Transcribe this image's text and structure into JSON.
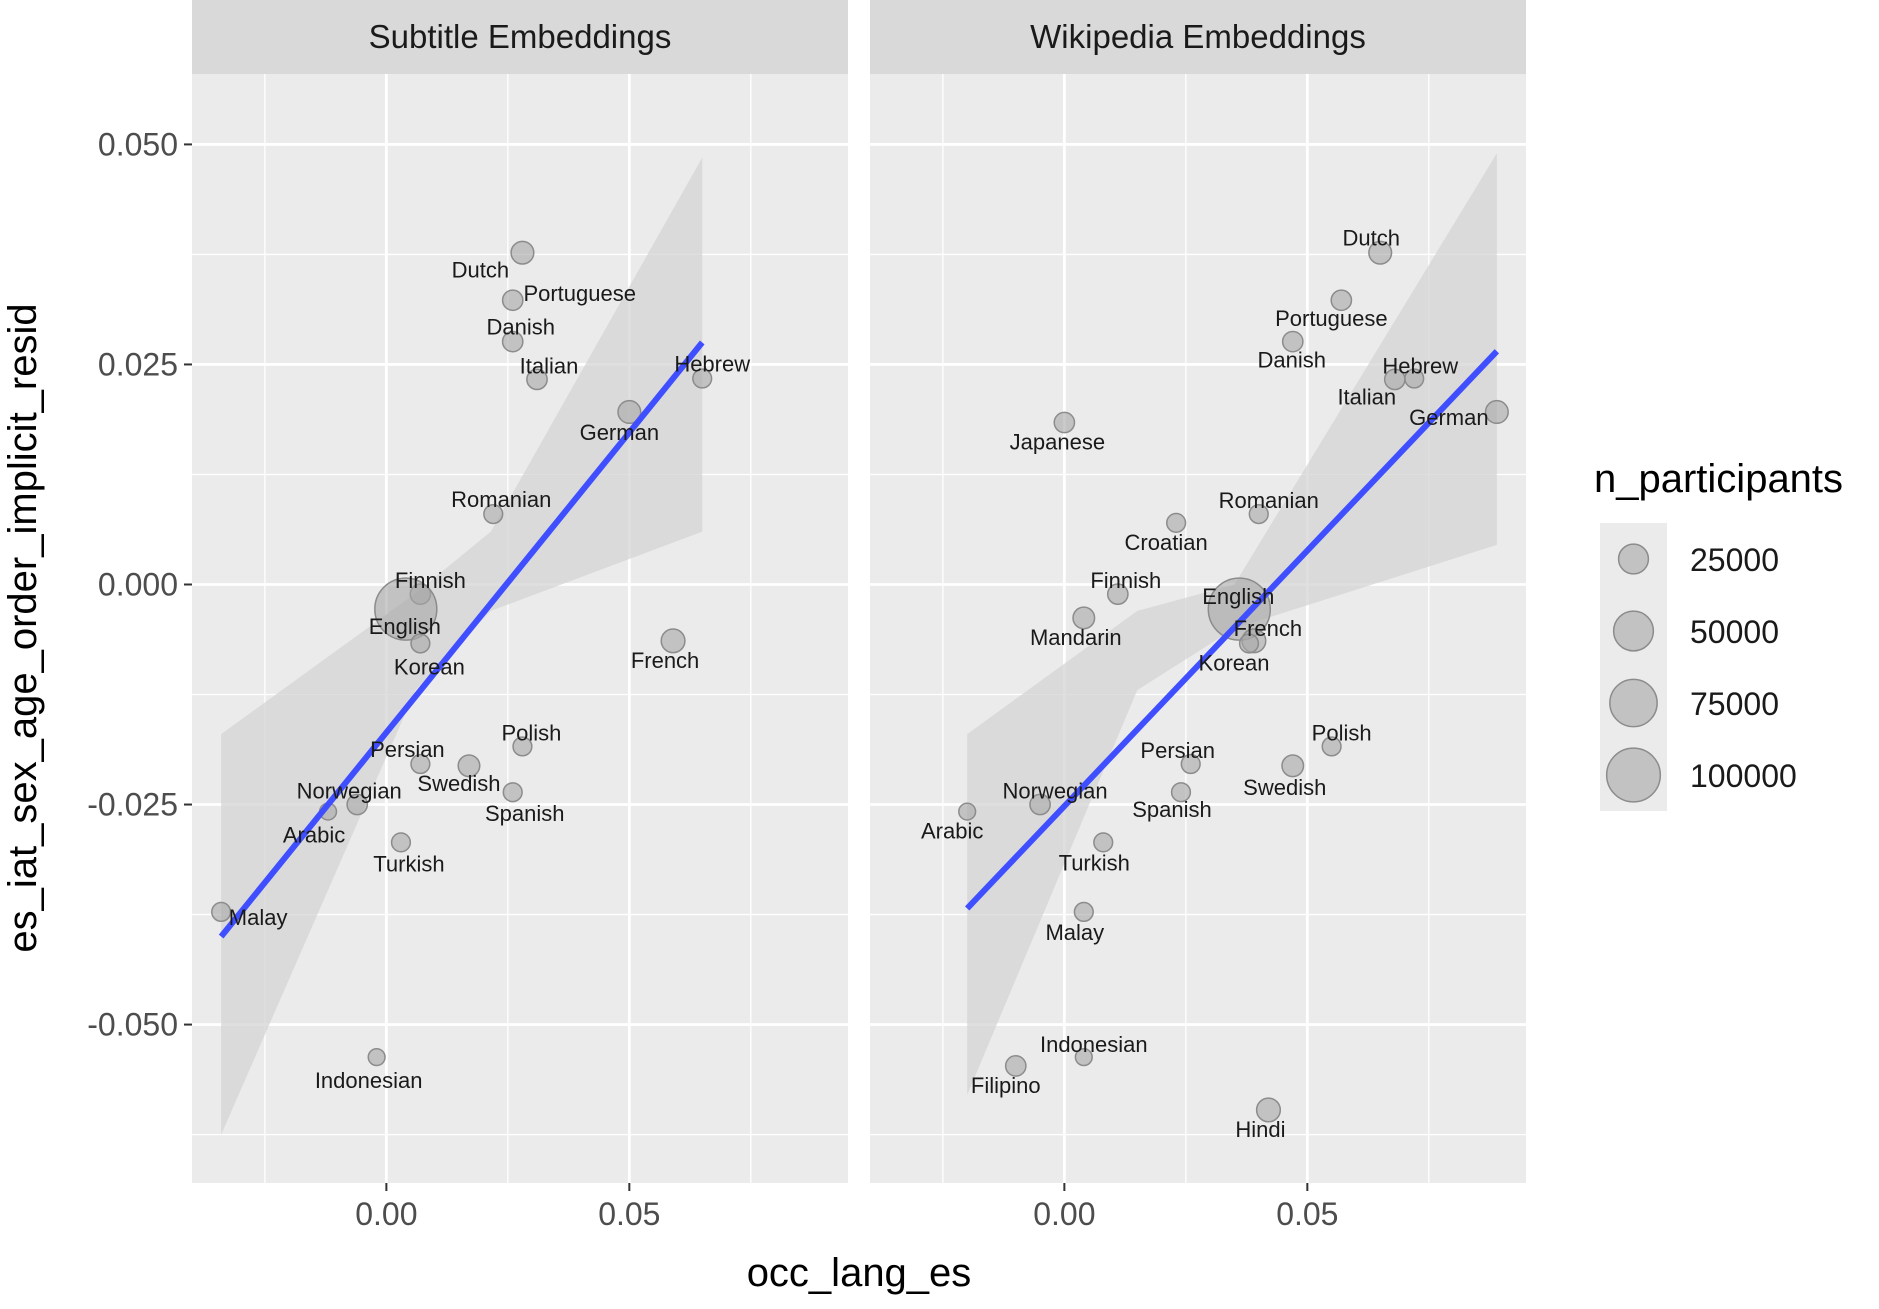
{
  "chart_data": {
    "type": "scatter",
    "x_label": "occ_lang_es",
    "y_label": "es_iat_sex_age_order_implicit_resid",
    "x_range": [
      -0.04,
      0.095
    ],
    "y_range": [
      -0.068,
      0.058
    ],
    "x_ticks": [
      0.0,
      0.05
    ],
    "x_tick_labels": [
      "0.00",
      "0.05"
    ],
    "y_ticks": [
      0.05,
      0.025,
      0.0,
      -0.025,
      -0.05
    ],
    "y_tick_labels": [
      "0.050",
      "0.025",
      "0.000",
      "-0.025",
      "-0.050"
    ],
    "grid": true,
    "legend": {
      "title": "n_participants",
      "placement": "right",
      "entries": [
        {
          "label": "25000",
          "value": 25000
        },
        {
          "label": "50000",
          "value": 50000
        },
        {
          "label": "75000",
          "value": 75000
        },
        {
          "label": "100000",
          "value": 100000
        }
      ]
    },
    "colors": {
      "panel_bg": "#ebebeb",
      "strip_bg": "#d9d9d9",
      "grid": "#ffffff",
      "point_fill": "#a6a6a6",
      "point_stroke": "#8c8c8c",
      "regression_line": "#3f4fff",
      "ribbon": "#d4d4d4"
    },
    "panels": [
      {
        "title": "Subtitle Embeddings",
        "fit_line": {
          "x": [
            -0.034,
            0.065
          ],
          "y": [
            -0.04,
            0.0275
          ]
        },
        "ribbon_upper": [
          [
            -0.034,
            -0.017
          ],
          [
            0.006,
            -0.001
          ],
          [
            0.0215,
            0.006
          ],
          [
            0.065,
            0.0485
          ]
        ],
        "ribbon_lower": [
          [
            -0.034,
            -0.0625
          ],
          [
            0.006,
            -0.012
          ],
          [
            0.0215,
            -0.003
          ],
          [
            0.065,
            0.006
          ]
        ],
        "points": [
          {
            "label": "Dutch",
            "x": 0.028,
            "y": 0.0377,
            "n": 5000
          },
          {
            "label": "Portuguese",
            "x": 0.026,
            "y": 0.0323,
            "n": 3000
          },
          {
            "label": "Danish",
            "x": 0.026,
            "y": 0.0276,
            "n": 3000
          },
          {
            "label": "Italian",
            "x": 0.031,
            "y": 0.0233,
            "n": 3000
          },
          {
            "label": "Hebrew",
            "x": 0.065,
            "y": 0.0234,
            "n": 2000
          },
          {
            "label": "German",
            "x": 0.05,
            "y": 0.0196,
            "n": 5000
          },
          {
            "label": "Romanian",
            "x": 0.022,
            "y": 0.008,
            "n": 2000
          },
          {
            "label": "Finnish",
            "x": 0.007,
            "y": -0.0011,
            "n": 3000
          },
          {
            "label": "English",
            "x": 0.004,
            "y": -0.0028,
            "n": 110000
          },
          {
            "label": "Korean",
            "x": 0.007,
            "y": -0.0067,
            "n": 2000
          },
          {
            "label": "French",
            "x": 0.059,
            "y": -0.0064,
            "n": 6000
          },
          {
            "label": "Polish",
            "x": 0.028,
            "y": -0.0184,
            "n": 2000
          },
          {
            "label": "Persian",
            "x": 0.007,
            "y": -0.0204,
            "n": 2000
          },
          {
            "label": "Swedish",
            "x": 0.017,
            "y": -0.0206,
            "n": 4000
          },
          {
            "label": "Spanish",
            "x": 0.026,
            "y": -0.0236,
            "n": 2000
          },
          {
            "label": "Norwegian",
            "x": -0.006,
            "y": -0.025,
            "n": 3000
          },
          {
            "label": "Arabic",
            "x": -0.012,
            "y": -0.0258,
            "n": 1000
          },
          {
            "label": "Turkish",
            "x": 0.003,
            "y": -0.0293,
            "n": 2000
          },
          {
            "label": "Malay",
            "x": -0.034,
            "y": -0.0372,
            "n": 2000
          },
          {
            "label": "Indonesian",
            "x": -0.002,
            "y": -0.0537,
            "n": 1000
          }
        ]
      },
      {
        "title": "Wikipedia Embeddings",
        "fit_line": {
          "x": [
            -0.02,
            0.089
          ],
          "y": [
            -0.0368,
            0.0265
          ]
        },
        "ribbon_upper": [
          [
            -0.02,
            -0.017
          ],
          [
            0.015,
            -0.003
          ],
          [
            0.035,
            0.0
          ],
          [
            0.089,
            0.049
          ]
        ],
        "ribbon_lower": [
          [
            -0.02,
            -0.058
          ],
          [
            0.015,
            -0.012
          ],
          [
            0.035,
            -0.005
          ],
          [
            0.089,
            0.0045
          ]
        ],
        "points": [
          {
            "label": "Dutch",
            "x": 0.065,
            "y": 0.0377,
            "n": 5000
          },
          {
            "label": "Portuguese",
            "x": 0.057,
            "y": 0.0323,
            "n": 3000
          },
          {
            "label": "Danish",
            "x": 0.047,
            "y": 0.0276,
            "n": 3000
          },
          {
            "label": "Hebrew",
            "x": 0.072,
            "y": 0.0234,
            "n": 2000
          },
          {
            "label": "Italian",
            "x": 0.068,
            "y": 0.0233,
            "n": 3000
          },
          {
            "label": "German",
            "x": 0.089,
            "y": 0.0196,
            "n": 5000
          },
          {
            "label": "Japanese",
            "x": 0.0,
            "y": 0.0184,
            "n": 3000
          },
          {
            "label": "Romanian",
            "x": 0.04,
            "y": 0.008,
            "n": 2000
          },
          {
            "label": "Croatian",
            "x": 0.023,
            "y": 0.007,
            "n": 2000
          },
          {
            "label": "Finnish",
            "x": 0.011,
            "y": -0.0011,
            "n": 3000
          },
          {
            "label": "English",
            "x": 0.036,
            "y": -0.0028,
            "n": 110000
          },
          {
            "label": "Mandarin",
            "x": 0.004,
            "y": -0.0038,
            "n": 4000
          },
          {
            "label": "French",
            "x": 0.039,
            "y": -0.0064,
            "n": 6000
          },
          {
            "label": "Korean",
            "x": 0.038,
            "y": -0.0067,
            "n": 2000
          },
          {
            "label": "Polish",
            "x": 0.055,
            "y": -0.0184,
            "n": 2000
          },
          {
            "label": "Swedish",
            "x": 0.047,
            "y": -0.0206,
            "n": 4000
          },
          {
            "label": "Persian",
            "x": 0.026,
            "y": -0.0204,
            "n": 2000
          },
          {
            "label": "Spanish",
            "x": 0.024,
            "y": -0.0236,
            "n": 2000
          },
          {
            "label": "Norwegian",
            "x": -0.005,
            "y": -0.025,
            "n": 3000
          },
          {
            "label": "Arabic",
            "x": -0.02,
            "y": -0.0258,
            "n": 1000
          },
          {
            "label": "Turkish",
            "x": 0.008,
            "y": -0.0293,
            "n": 2000
          },
          {
            "label": "Malay",
            "x": 0.004,
            "y": -0.0372,
            "n": 2000
          },
          {
            "label": "Indonesian",
            "x": 0.004,
            "y": -0.0537,
            "n": 1000
          },
          {
            "label": "Filipino",
            "x": -0.01,
            "y": -0.0547,
            "n": 3000
          },
          {
            "label": "Hindi",
            "x": 0.042,
            "y": -0.0597,
            "n": 6000
          }
        ]
      }
    ]
  }
}
